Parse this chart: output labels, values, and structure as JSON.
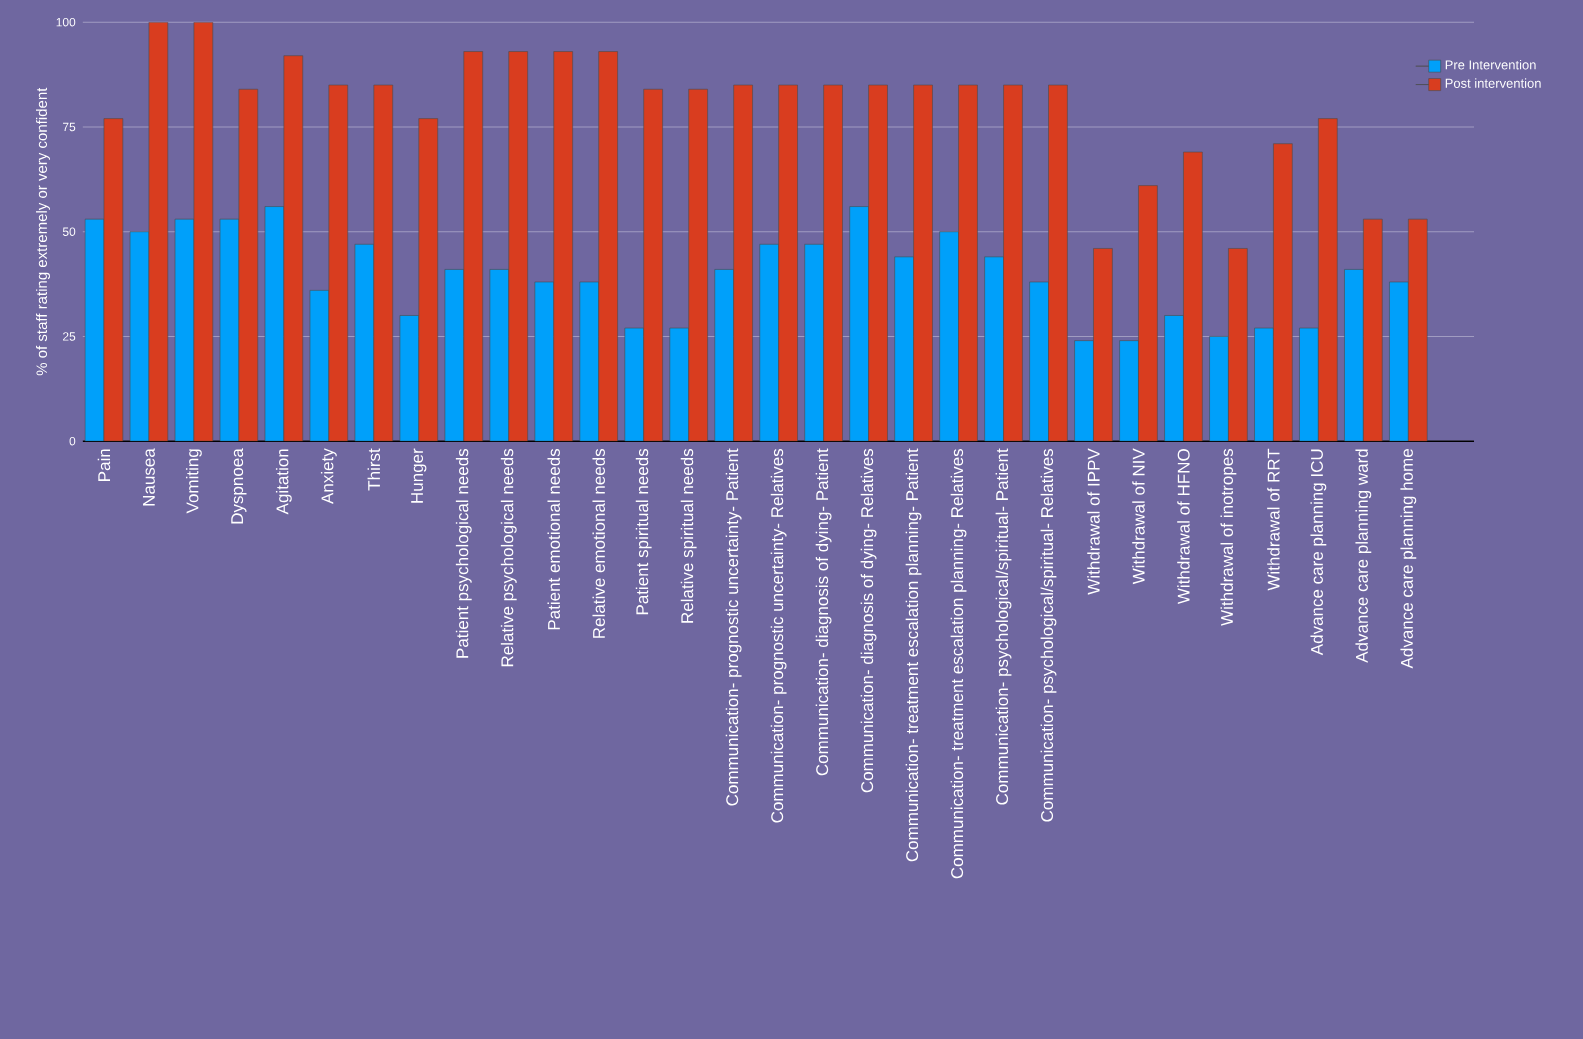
{
  "chart_data": {
    "type": "bar",
    "ylabel": "% of staff rating extremely or very confident",
    "categories": [
      "Pain",
      "Nausea",
      "Vomiting",
      "Dyspnoea",
      "Agitation",
      "Anxiety",
      "Thirst",
      "Hunger",
      "Patient psychological needs",
      "Relative psychological needs",
      "Patient emotional needs",
      "Relative emotional needs",
      "Patient spiritual needs",
      "Relative spiritual needs",
      "Communication- prognostic uncertainty- Patient",
      "Communication- prognostic uncertainty- Relatives",
      "Communication- diagnosis of dying- Patient",
      "Communication- diagnosis of dying- Relatives",
      "Communication- treatment escalation planning- Patient",
      "Communication- treatment escalation planning- Relatives",
      "Communication- psychological/spiritual- Patient",
      "Communication- psychological/spiritual- Relatives",
      "Withdrawal of IPPV",
      "Withdrawal of NIV",
      "Withdrawal of HFNO",
      "Withdrawal of inotropes",
      "Withdrawal of RRT",
      "Advance care planning ICU",
      "Advance care planning ward",
      "Advance care planning home"
    ],
    "series": [
      {
        "name": "Pre Intervention",
        "color": "#00a0fa",
        "values": [
          53,
          50,
          53,
          53,
          56,
          36,
          47,
          30,
          41,
          41,
          38,
          38,
          27,
          27,
          41,
          47,
          47,
          56,
          44,
          50,
          44,
          38,
          24,
          24,
          30,
          25,
          27,
          27,
          41,
          38
        ]
      },
      {
        "name": "Post intervention",
        "color": "#d93d1f",
        "values": [
          77,
          100,
          100,
          84,
          92,
          85,
          85,
          77,
          93,
          93,
          93,
          93,
          84,
          84,
          85,
          85,
          85,
          85,
          85,
          85,
          85,
          85,
          46,
          61,
          69,
          46,
          71,
          77,
          53,
          53
        ]
      }
    ],
    "ylim": [
      0,
      100
    ],
    "yticks": [
      0,
      25,
      50,
      75,
      100
    ],
    "grid": "y",
    "legend": "top right"
  }
}
